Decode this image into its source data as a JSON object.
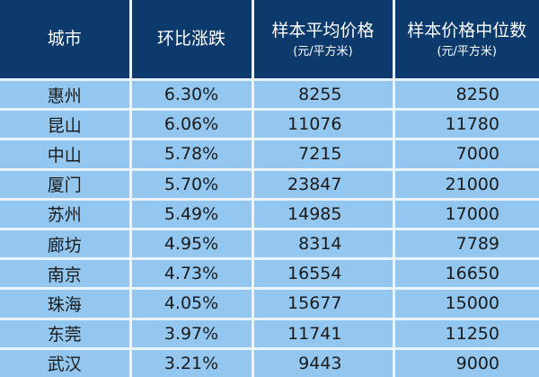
{
  "table": {
    "headers": [
      {
        "label": "城市",
        "unit": ""
      },
      {
        "label": "环比涨跌",
        "unit": ""
      },
      {
        "label": "样本平均价格",
        "unit": "(元/平方米)"
      },
      {
        "label": "样本价格中位数",
        "unit": "(元/平方米)"
      }
    ],
    "rows": [
      [
        "惠州",
        "6.30%",
        "8255",
        "8250"
      ],
      [
        "昆山",
        "6.06%",
        "11076",
        "11780"
      ],
      [
        "中山",
        "5.78%",
        "7215",
        "7000"
      ],
      [
        "厦门",
        "5.70%",
        "23847",
        "21000"
      ],
      [
        "苏州",
        "5.49%",
        "14985",
        "17000"
      ],
      [
        "廊坊",
        "4.95%",
        "8314",
        "7789"
      ],
      [
        "南京",
        "4.73%",
        "16554",
        "16650"
      ],
      [
        "珠海",
        "4.05%",
        "15677",
        "15000"
      ],
      [
        "东莞",
        "3.97%",
        "11741",
        "11250"
      ],
      [
        "武汉",
        "3.21%",
        "9443",
        "9000"
      ]
    ]
  },
  "colors": {
    "header_bg": "#0c3a6c",
    "row_bg": "#93c7f0",
    "grid": "#eaf4fc"
  }
}
